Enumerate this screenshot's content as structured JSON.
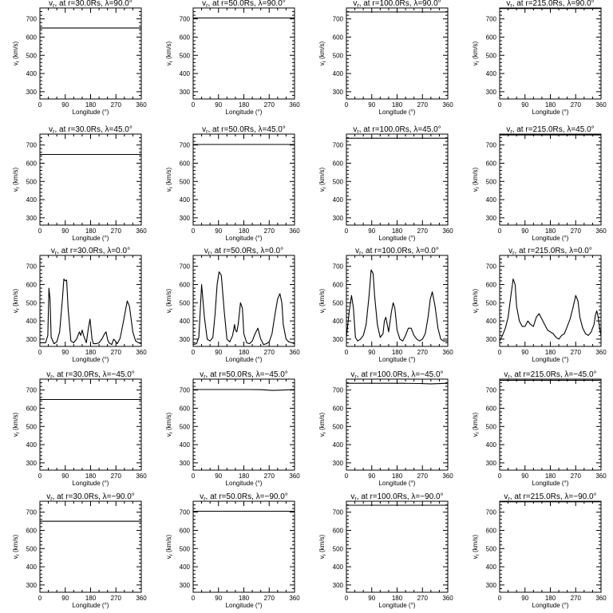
{
  "chart_data": [
    {
      "type": "line",
      "title": "v",
      "title_sub": "r",
      "title_rest": ", at r=30.0Rs, λ=90.0°",
      "xlabel": "Longitude (°)",
      "ylabel": "v",
      "ylabel_sub": "r",
      "ylabel_rest": " (km/s)",
      "xlim": [
        0,
        360
      ],
      "ylim": [
        260,
        760
      ],
      "xticks": [
        0,
        90,
        180,
        270,
        360
      ],
      "yticks": [
        300,
        400,
        500,
        600,
        700
      ],
      "x": [
        0,
        360
      ],
      "y": [
        650,
        650
      ]
    },
    {
      "type": "line",
      "title": "v",
      "title_sub": "r",
      "title_rest": ", at r=50.0Rs, λ=90.0°",
      "xlabel": "Longitude (°)",
      "ylabel": "v",
      "ylabel_sub": "r",
      "ylabel_rest": " (km/s)",
      "xlim": [
        0,
        360
      ],
      "ylim": [
        260,
        760
      ],
      "xticks": [
        0,
        90,
        180,
        270,
        360
      ],
      "yticks": [
        300,
        400,
        500,
        600,
        700
      ],
      "x": [
        0,
        360
      ],
      "y": [
        705,
        705
      ]
    },
    {
      "type": "line",
      "title": "v",
      "title_sub": "r",
      "title_rest": ", at r=100.0Rs, λ=90.0°",
      "xlabel": "Longitude (°)",
      "ylabel": "v",
      "ylabel_sub": "r",
      "ylabel_rest": " (km/s)",
      "xlim": [
        0,
        360
      ],
      "ylim": [
        260,
        760
      ],
      "xticks": [
        0,
        90,
        180,
        270,
        360
      ],
      "yticks": [
        300,
        400,
        500,
        600,
        700
      ],
      "x": [
        0,
        360
      ],
      "y": [
        738,
        738
      ]
    },
    {
      "type": "line",
      "title": "v",
      "title_sub": "r",
      "title_rest": ", at r=215.0Rs, λ=90.0°",
      "xlabel": "Longitude (°)",
      "ylabel": "v",
      "ylabel_sub": "r",
      "ylabel_rest": " (km/s)",
      "xlim": [
        0,
        360
      ],
      "ylim": [
        260,
        760
      ],
      "xticks": [
        0,
        90,
        180,
        270,
        360
      ],
      "yticks": [
        300,
        400,
        500,
        600,
        700
      ],
      "x": [
        0,
        360
      ],
      "y": [
        757,
        757
      ]
    },
    {
      "type": "line",
      "title": "v",
      "title_sub": "r",
      "title_rest": ", at r=30.0Rs, λ=45.0°",
      "xlabel": "Longitude (°)",
      "ylabel": "v",
      "ylabel_sub": "r",
      "ylabel_rest": " (km/s)",
      "xlim": [
        0,
        360
      ],
      "ylim": [
        260,
        760
      ],
      "xticks": [
        0,
        90,
        180,
        270,
        360
      ],
      "yticks": [
        300,
        400,
        500,
        600,
        700
      ],
      "x": [
        0,
        360
      ],
      "y": [
        648,
        648
      ]
    },
    {
      "type": "line",
      "title": "v",
      "title_sub": "r",
      "title_rest": ", at r=50.0Rs, λ=45.0°",
      "xlabel": "Longitude (°)",
      "ylabel": "v",
      "ylabel_sub": "r",
      "ylabel_rest": " (km/s)",
      "xlim": [
        0,
        360
      ],
      "ylim": [
        260,
        760
      ],
      "xticks": [
        0,
        90,
        180,
        270,
        360
      ],
      "yticks": [
        300,
        400,
        500,
        600,
        700
      ],
      "x": [
        0,
        360
      ],
      "y": [
        703,
        703
      ]
    },
    {
      "type": "line",
      "title": "v",
      "title_sub": "r",
      "title_rest": ", at r=100.0Rs, λ=45.0°",
      "xlabel": "Longitude (°)",
      "ylabel": "v",
      "ylabel_sub": "r",
      "ylabel_rest": " (km/s)",
      "xlim": [
        0,
        360
      ],
      "ylim": [
        260,
        760
      ],
      "xticks": [
        0,
        90,
        180,
        270,
        360
      ],
      "yticks": [
        300,
        400,
        500,
        600,
        700
      ],
      "x": [
        0,
        360
      ],
      "y": [
        737,
        737
      ]
    },
    {
      "type": "line",
      "title": "v",
      "title_sub": "r",
      "title_rest": ", at r=215.0Rs, λ=45.0°",
      "xlabel": "Longitude (°)",
      "ylabel": "v",
      "ylabel_sub": "r",
      "ylabel_rest": " (km/s)",
      "xlim": [
        0,
        360
      ],
      "ylim": [
        260,
        760
      ],
      "xticks": [
        0,
        90,
        180,
        270,
        360
      ],
      "yticks": [
        300,
        400,
        500,
        600,
        700
      ],
      "x": [
        0,
        360
      ],
      "y": [
        755,
        755
      ]
    },
    {
      "type": "line",
      "title": "v",
      "title_sub": "r",
      "title_rest": ", at r=30.0Rs, λ=0.0°",
      "xlabel": "Longitude (°)",
      "ylabel": "v",
      "ylabel_sub": "r",
      "ylabel_rest": " (km/s)",
      "xlim": [
        0,
        360
      ],
      "ylim": [
        260,
        760
      ],
      "xticks": [
        0,
        90,
        180,
        270,
        360
      ],
      "yticks": [
        300,
        400,
        500,
        600,
        700
      ],
      "x": [
        0,
        20,
        28,
        32,
        36,
        40,
        50,
        60,
        70,
        80,
        85,
        90,
        95,
        100,
        110,
        120,
        130,
        140,
        145,
        150,
        155,
        165,
        172,
        178,
        185,
        190,
        200,
        210,
        220,
        230,
        235,
        240,
        245,
        255,
        262,
        270,
        275,
        285,
        297,
        310,
        318,
        330,
        340,
        350,
        360
      ],
      "y": [
        280,
        280,
        320,
        580,
        520,
        310,
        275,
        285,
        340,
        520,
        630,
        620,
        625,
        470,
        290,
        280,
        300,
        340,
        320,
        350,
        320,
        280,
        360,
        410,
        300,
        275,
        275,
        280,
        300,
        330,
        340,
        300,
        280,
        270,
        300,
        285,
        275,
        305,
        400,
        510,
        480,
        340,
        290,
        280,
        275
      ]
    },
    {
      "type": "line",
      "title": "v",
      "title_sub": "r",
      "title_rest": ", at r=50.0Rs, λ=0.0°",
      "xlabel": "Longitude (°)",
      "ylabel": "v",
      "ylabel_sub": "r",
      "ylabel_rest": " (km/s)",
      "xlim": [
        0,
        360
      ],
      "ylim": [
        260,
        760
      ],
      "xticks": [
        0,
        90,
        180,
        270,
        360
      ],
      "yticks": [
        300,
        400,
        500,
        600,
        700
      ],
      "x": [
        0,
        12,
        20,
        30,
        40,
        50,
        60,
        70,
        78,
        85,
        92,
        100,
        110,
        120,
        130,
        140,
        147,
        150,
        155,
        160,
        168,
        175,
        180,
        190,
        200,
        210,
        220,
        230,
        240,
        250,
        260,
        270,
        280,
        290,
        300,
        308,
        315,
        320,
        330,
        340,
        350,
        360
      ],
      "y": [
        270,
        275,
        310,
        600,
        420,
        300,
        290,
        310,
        440,
        600,
        670,
        650,
        460,
        300,
        285,
        320,
        380,
        350,
        340,
        380,
        500,
        470,
        330,
        280,
        275,
        290,
        330,
        360,
        300,
        270,
        275,
        285,
        330,
        430,
        520,
        550,
        500,
        380,
        300,
        285,
        280,
        275
      ]
    },
    {
      "type": "line",
      "title": "v",
      "title_sub": "r",
      "title_rest": ", at r=100.0Rs, λ=0.0°",
      "xlabel": "Longitude (°)",
      "ylabel": "v",
      "ylabel_sub": "r",
      "ylabel_rest": " (km/s)",
      "xlim": [
        0,
        360
      ],
      "ylim": [
        260,
        760
      ],
      "xticks": [
        0,
        90,
        180,
        270,
        360
      ],
      "yticks": [
        300,
        400,
        500,
        600,
        700
      ],
      "x": [
        0,
        10,
        18,
        25,
        32,
        40,
        50,
        60,
        70,
        80,
        88,
        95,
        100,
        110,
        120,
        130,
        135,
        140,
        145,
        150,
        160,
        166,
        172,
        180,
        190,
        200,
        210,
        220,
        230,
        240,
        250,
        260,
        270,
        280,
        290,
        298,
        305,
        315,
        325,
        335,
        345,
        360
      ],
      "y": [
        310,
        450,
        540,
        470,
        310,
        290,
        300,
        320,
        380,
        530,
        680,
        660,
        540,
        380,
        310,
        330,
        400,
        420,
        380,
        340,
        450,
        500,
        470,
        350,
        300,
        290,
        320,
        360,
        360,
        320,
        300,
        290,
        300,
        330,
        420,
        520,
        560,
        480,
        360,
        300,
        290,
        290
      ]
    },
    {
      "type": "line",
      "title": "v",
      "title_sub": "r",
      "title_rest": ", at r=215.0Rs, λ=0.0°",
      "xlabel": "Longitude (°)",
      "ylabel": "v",
      "ylabel_sub": "r",
      "ylabel_rest": " (km/s)",
      "xlim": [
        0,
        360
      ],
      "ylim": [
        260,
        760
      ],
      "xticks": [
        0,
        90,
        180,
        270,
        360
      ],
      "yticks": [
        300,
        400,
        500,
        600,
        700
      ],
      "x": [
        0,
        10,
        20,
        30,
        40,
        48,
        55,
        60,
        70,
        80,
        90,
        100,
        110,
        120,
        130,
        140,
        150,
        160,
        170,
        180,
        190,
        200,
        210,
        220,
        230,
        240,
        250,
        260,
        270,
        278,
        285,
        295,
        305,
        315,
        325,
        335,
        340,
        345,
        350,
        355,
        360
      ],
      "y": [
        290,
        320,
        360,
        420,
        540,
        630,
        600,
        480,
        400,
        370,
        370,
        400,
        380,
        370,
        420,
        440,
        410,
        380,
        350,
        340,
        330,
        310,
        300,
        320,
        330,
        370,
        410,
        470,
        540,
        510,
        420,
        360,
        330,
        320,
        340,
        380,
        430,
        455,
        420,
        360,
        320
      ]
    },
    {
      "type": "line",
      "title": "v",
      "title_sub": "r",
      "title_rest": ", at r=30.0Rs, λ=−45.0°",
      "xlabel": "Longitude (°)",
      "ylabel": "v",
      "ylabel_sub": "r",
      "ylabel_rest": " (km/s)",
      "xlim": [
        0,
        360
      ],
      "ylim": [
        260,
        760
      ],
      "xticks": [
        0,
        90,
        180,
        270,
        360
      ],
      "yticks": [
        300,
        400,
        500,
        600,
        700
      ],
      "x": [
        0,
        360
      ],
      "y": [
        648,
        648
      ]
    },
    {
      "type": "line",
      "title": "v",
      "title_sub": "r",
      "title_rest": ", at r=50.0Rs, λ=−45.0°",
      "xlabel": "Longitude (°)",
      "ylabel": "v",
      "ylabel_sub": "r",
      "ylabel_rest": " (km/s)",
      "xlim": [
        0,
        360
      ],
      "ylim": [
        260,
        760
      ],
      "xticks": [
        0,
        90,
        180,
        270,
        360
      ],
      "yticks": [
        300,
        400,
        500,
        600,
        700
      ],
      "x": [
        0,
        200,
        240,
        280,
        320,
        360
      ],
      "y": [
        703,
        703,
        702,
        698,
        700,
        703
      ]
    },
    {
      "type": "line",
      "title": "v",
      "title_sub": "r",
      "title_rest": ", at r=100.0Rs, λ=−45.0°",
      "xlabel": "Longitude (°)",
      "ylabel": "v",
      "ylabel_sub": "r",
      "ylabel_rest": " (km/s)",
      "xlim": [
        0,
        360
      ],
      "ylim": [
        260,
        760
      ],
      "xticks": [
        0,
        90,
        180,
        270,
        360
      ],
      "yticks": [
        300,
        400,
        500,
        600,
        700
      ],
      "x": [
        0,
        200,
        260,
        300,
        360
      ],
      "y": [
        737,
        737,
        736,
        734,
        737
      ]
    },
    {
      "type": "line",
      "title": "v",
      "title_sub": "r",
      "title_rest": ", at r=215.0Rs, λ=−45.0°",
      "xlabel": "Longitude (°)",
      "ylabel": "v",
      "ylabel_sub": "r",
      "ylabel_rest": " (km/s)",
      "xlim": [
        0,
        360
      ],
      "ylim": [
        260,
        760
      ],
      "xticks": [
        0,
        90,
        180,
        270,
        360
      ],
      "yticks": [
        300,
        400,
        500,
        600,
        700
      ],
      "x": [
        0,
        360
      ],
      "y": [
        754,
        754
      ]
    },
    {
      "type": "line",
      "title": "v",
      "title_sub": "r",
      "title_rest": ", at r=30.0Rs, λ=−90.0°",
      "xlabel": "Longitude (°)",
      "ylabel": "v",
      "ylabel_sub": "r",
      "ylabel_rest": " (km/s)",
      "xlim": [
        0,
        360
      ],
      "ylim": [
        260,
        760
      ],
      "xticks": [
        0,
        90,
        180,
        270,
        360
      ],
      "yticks": [
        300,
        400,
        500,
        600,
        700
      ],
      "x": [
        0,
        360
      ],
      "y": [
        650,
        650
      ]
    },
    {
      "type": "line",
      "title": "v",
      "title_sub": "r",
      "title_rest": ", at r=50.0Rs, λ=−90.0°",
      "xlabel": "Longitude (°)",
      "ylabel": "v",
      "ylabel_sub": "r",
      "ylabel_rest": " (km/s)",
      "xlim": [
        0,
        360
      ],
      "ylim": [
        260,
        760
      ],
      "xticks": [
        0,
        90,
        180,
        270,
        360
      ],
      "yticks": [
        300,
        400,
        500,
        600,
        700
      ],
      "x": [
        0,
        360
      ],
      "y": [
        705,
        705
      ]
    },
    {
      "type": "line",
      "title": "v",
      "title_sub": "r",
      "title_rest": ", at r=100.0Rs, λ=−90.0°",
      "xlabel": "Longitude (°)",
      "ylabel": "v",
      "ylabel_sub": "r",
      "ylabel_rest": " (km/s)",
      "xlim": [
        0,
        360
      ],
      "ylim": [
        260,
        760
      ],
      "xticks": [
        0,
        90,
        180,
        270,
        360
      ],
      "yticks": [
        300,
        400,
        500,
        600,
        700
      ],
      "x": [
        0,
        360
      ],
      "y": [
        738,
        738
      ]
    },
    {
      "type": "line",
      "title": "v",
      "title_sub": "r",
      "title_rest": ", at r=215.0Rs, λ=−90.0°",
      "xlabel": "Longitude (°)",
      "ylabel": "v",
      "ylabel_sub": "r",
      "ylabel_rest": " (km/s)",
      "xlim": [
        0,
        360
      ],
      "ylim": [
        260,
        760
      ],
      "xticks": [
        0,
        90,
        180,
        270,
        360
      ],
      "yticks": [
        300,
        400,
        500,
        600,
        700
      ],
      "x": [
        0,
        360
      ],
      "y": [
        757,
        757
      ]
    }
  ]
}
